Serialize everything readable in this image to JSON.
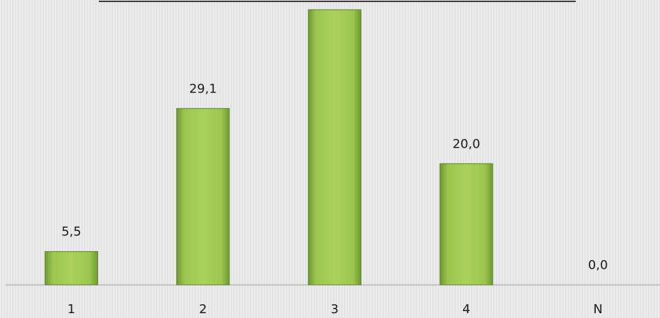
{
  "chart_data": {
    "type": "bar",
    "categories": [
      "1",
      "2",
      "3",
      "4",
      "N"
    ],
    "values": [
      5.5,
      29.1,
      45.4,
      20.0,
      0.0
    ],
    "value_labels": [
      "5,5",
      "29,1",
      null,
      "20,0",
      "0,0"
    ],
    "color": "#93bf47",
    "ylim": [
      0,
      47
    ]
  }
}
